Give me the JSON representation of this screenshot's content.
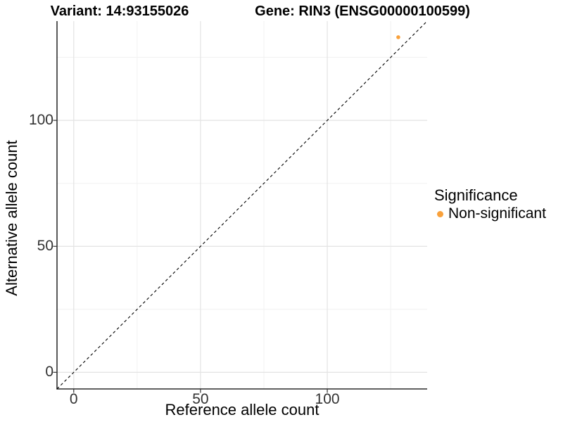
{
  "chart_data": {
    "type": "scatter",
    "title_left": "Variant: 14:93155026",
    "title_right": "Gene: RIN3 (ENSG00000100599)",
    "xlabel": "Reference allele count",
    "ylabel": "Alternative allele count",
    "xlim": [
      -6.6,
      139.4
    ],
    "ylim": [
      -6.6,
      139.4
    ],
    "x_major_ticks": [
      0,
      50,
      100
    ],
    "y_major_ticks": [
      0,
      50,
      100
    ],
    "x_minor_gridlines": [
      25,
      75,
      125
    ],
    "y_minor_gridlines": [
      25,
      75,
      125
    ],
    "grid": "major-and-minor",
    "points": [
      {
        "x": 128,
        "y": 133,
        "series": "Non-significant"
      }
    ],
    "identity_line": {
      "type": "y=x",
      "style": "dashed",
      "color": "#000000"
    },
    "legend": {
      "title": "Significance",
      "position": "right",
      "entries": [
        {
          "label": "Non-significant",
          "color": "#F9A13B",
          "marker": "circle"
        }
      ]
    },
    "colors": {
      "point": "#F9A13B",
      "major_grid": "#E3E3E3",
      "minor_grid": "#F1F1F1",
      "axis_line": "#000000",
      "tick_mark": "#333333",
      "tick_text": "#333333",
      "background": "#FFFFFF"
    }
  }
}
